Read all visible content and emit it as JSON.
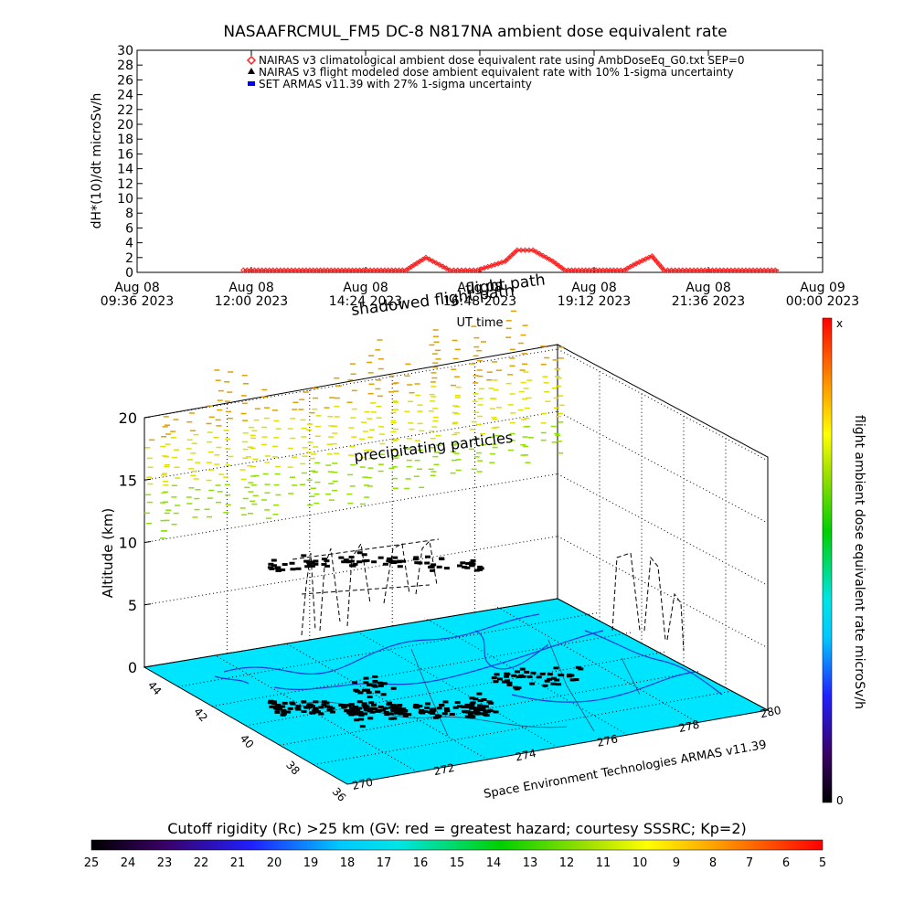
{
  "chart_data": [
    {
      "type": "line",
      "title": "NASAAFRCMUL_FM5 DC-8   N817NA ambient dose equivalent rate",
      "ylabel": "dH*(10)/dt microSv/h",
      "xlabel": "UT time",
      "ylim": [
        0,
        30
      ],
      "y_ticks": [
        "0",
        "2",
        "4",
        "6",
        "8",
        "10",
        "12",
        "14",
        "16",
        "18",
        "20",
        "22",
        "24",
        "26",
        "28",
        "30"
      ],
      "x_ticks": [
        {
          "date": "Aug 08",
          "time": "09:36 2023"
        },
        {
          "date": "Aug 08",
          "time": "12:00 2023"
        },
        {
          "date": "Aug 08",
          "time": "14:24 2023"
        },
        {
          "date": "Aug 08",
          "time": "16:48 2023"
        },
        {
          "date": "Aug 08",
          "time": "19:12 2023"
        },
        {
          "date": "Aug 08",
          "time": "21:36 2023"
        },
        {
          "date": "Aug 09",
          "time": "00:00 2023"
        }
      ],
      "xlim": [
        "2023-08-08 09:36",
        "2023-08-09 00:00"
      ],
      "legend_placement": "top-left",
      "series": [
        {
          "name": "NAIRAS v3 climatological ambient dose equivalent rate using AmbDoseEq_G0.txt SEP=0",
          "color": "#ff2020",
          "marker": "diamond",
          "x": [
            "2023-08-08 11:50",
            "2023-08-08 13:00",
            "2023-08-08 14:30",
            "2023-08-08 15:15",
            "2023-08-08 15:25",
            "2023-08-08 15:40",
            "2023-08-08 16:10",
            "2023-08-08 16:30",
            "2023-08-08 16:45",
            "2023-08-08 17:20",
            "2023-08-08 17:35",
            "2023-08-08 17:55",
            "2023-08-08 18:20",
            "2023-08-08 18:35",
            "2023-08-08 19:10",
            "2023-08-08 19:50",
            "2023-08-08 20:05",
            "2023-08-08 20:25",
            "2023-08-08 20:40",
            "2023-08-08 22:00",
            "2023-08-08 23:05"
          ],
          "y": [
            0.3,
            0.3,
            0.3,
            0.3,
            1.0,
            2.0,
            0.3,
            0.3,
            0.3,
            1.5,
            3.0,
            3.0,
            1.5,
            0.3,
            0.3,
            0.3,
            1.2,
            2.2,
            0.3,
            0.3,
            0.3
          ]
        },
        {
          "name": "NAIRAS v3 flight modeled dose ambient equivalent rate with 10% 1-sigma uncertainty",
          "color": "#000000",
          "marker": "triangle",
          "x": [],
          "y": []
        },
        {
          "name": "SET ARMAS v11.39 with 27% 1-sigma uncertainty",
          "color": "#0000ff",
          "marker": "square",
          "x": [],
          "y": []
        }
      ]
    },
    {
      "type": "scatter",
      "zlabel": "Altitude (km)",
      "z_ticks": [
        "0",
        "5",
        "10",
        "15",
        "20"
      ],
      "zlim": [
        0,
        20
      ],
      "lat_ticks": [
        "36",
        "38",
        "40",
        "42",
        "44"
      ],
      "lon_ticks": [
        "270",
        "272",
        "274",
        "276",
        "278",
        "280"
      ],
      "annotations": [
        "flight path",
        "shadowed flight path",
        "precipitating particles"
      ],
      "credit": "Space Environment Technologies ARMAS v11.39",
      "colorbar": {
        "label": "flight ambient dose equivalent rate microSv/h",
        "top_label": "x",
        "bottom_label": "0"
      },
      "flight_path_points": [
        {
          "lon": 271.0,
          "lat": 41.3,
          "alt": 11.2
        },
        {
          "lon": 271.6,
          "lat": 40.9,
          "alt": 11.6
        },
        {
          "lon": 272.3,
          "lat": 40.5,
          "alt": 11.8
        },
        {
          "lon": 273.0,
          "lat": 40.0,
          "alt": 11.9
        },
        {
          "lon": 273.7,
          "lat": 39.6,
          "alt": 11.7
        },
        {
          "lon": 274.4,
          "lat": 39.2,
          "alt": 11.5
        }
      ]
    },
    {
      "type": "heatmap",
      "title": "Cutoff rigidity (Rc) >25 km (GV: red = greatest hazard; courtesy SSSRC; Kp=2)",
      "colorbar_ticks": [
        "25",
        "24",
        "23",
        "22",
        "21",
        "20",
        "19",
        "18",
        "17",
        "16",
        "15",
        "14",
        "13",
        "12",
        "11",
        "10",
        "9",
        "8",
        "7",
        "6",
        "5"
      ],
      "region_value": 17
    }
  ],
  "colors": {
    "sea": "#00e5ff",
    "coast": "#1c3cdc",
    "red_series": "#ff2020",
    "blue_series": "#0000ff"
  }
}
